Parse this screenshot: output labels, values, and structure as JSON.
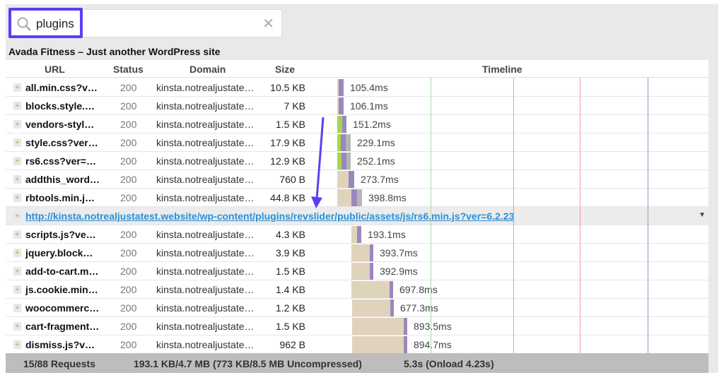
{
  "search": {
    "value": "plugins",
    "icon": "search-icon",
    "clear_icon": "close-icon"
  },
  "page_title": "Avada Fitness – Just another WordPress site",
  "columns": {
    "url": "URL",
    "status": "Status",
    "domain": "Domain",
    "size": "Size",
    "timeline": "Timeline"
  },
  "rows": [
    {
      "url": "all.min.css?v…",
      "status": "200",
      "domain": "kinsta.notrealjustate…",
      "size": "10.5 KB",
      "time": "105.4ms"
    },
    {
      "url": "blocks.style.…",
      "status": "200",
      "domain": "kinsta.notrealjustate…",
      "size": "7 KB",
      "time": "106.1ms"
    },
    {
      "url": "vendors-styl…",
      "status": "200",
      "domain": "kinsta.notrealjustate…",
      "size": "1.5 KB",
      "time": "151.2ms"
    },
    {
      "url": "style.css?ver…",
      "status": "200",
      "domain": "kinsta.notrealjustate…",
      "size": "17.9 KB",
      "time": "229.1ms"
    },
    {
      "url": "rs6.css?ver=…",
      "status": "200",
      "domain": "kinsta.notrealjustate…",
      "size": "12.9 KB",
      "time": "252.1ms"
    },
    {
      "url": "addthis_word…",
      "status": "200",
      "domain": "kinsta.notrealjustate…",
      "size": "760 B",
      "time": "273.7ms"
    },
    {
      "url": "rbtools.min.j…",
      "status": "200",
      "domain": "kinsta.notrealjustate…",
      "size": "44.8 KB",
      "time": "398.8ms"
    },
    {
      "url": "scripts.js?ve…",
      "status": "200",
      "domain": "kinsta.notrealjustate…",
      "size": "4.3 KB",
      "time": "193.1ms"
    },
    {
      "url": "jquery.block…",
      "status": "200",
      "domain": "kinsta.notrealjustate…",
      "size": "3.9 KB",
      "time": "393.7ms"
    },
    {
      "url": "add-to-cart.m…",
      "status": "200",
      "domain": "kinsta.notrealjustate…",
      "size": "1.5 KB",
      "time": "392.9ms"
    },
    {
      "url": "js.cookie.min…",
      "status": "200",
      "domain": "kinsta.notrealjustate…",
      "size": "1.4 KB",
      "time": "697.8ms"
    },
    {
      "url": "woocommerc…",
      "status": "200",
      "domain": "kinsta.notrealjustate…",
      "size": "1.2 KB",
      "time": "677.3ms"
    },
    {
      "url": "cart-fragment…",
      "status": "200",
      "domain": "kinsta.notrealjustate…",
      "size": "1.5 KB",
      "time": "893.5ms"
    },
    {
      "url": "dismiss.js?v…",
      "status": "200",
      "domain": "kinsta.notrealjustate…",
      "size": "962 B",
      "time": "894.7ms"
    }
  ],
  "expanded_row": {
    "url": "http://kinsta.notrealjustatest.website/wp-content/plugins/revslider/public/assets/js/rs6.min.js?ver=6.2.23"
  },
  "footer": {
    "requests": "15/88 Requests",
    "size": "193.1 KB/4.7 MB  (773 KB/8.5 MB Uncompressed)",
    "time": "5.3s  (Onload 4.23s)"
  },
  "colors": {
    "highlight": "#5b3ff0",
    "wait": "#e0d3bb",
    "dns": "#a6d64a",
    "receive": "#9b87bf",
    "extra": "#b5b5b5",
    "link": "#2a8fd8"
  }
}
